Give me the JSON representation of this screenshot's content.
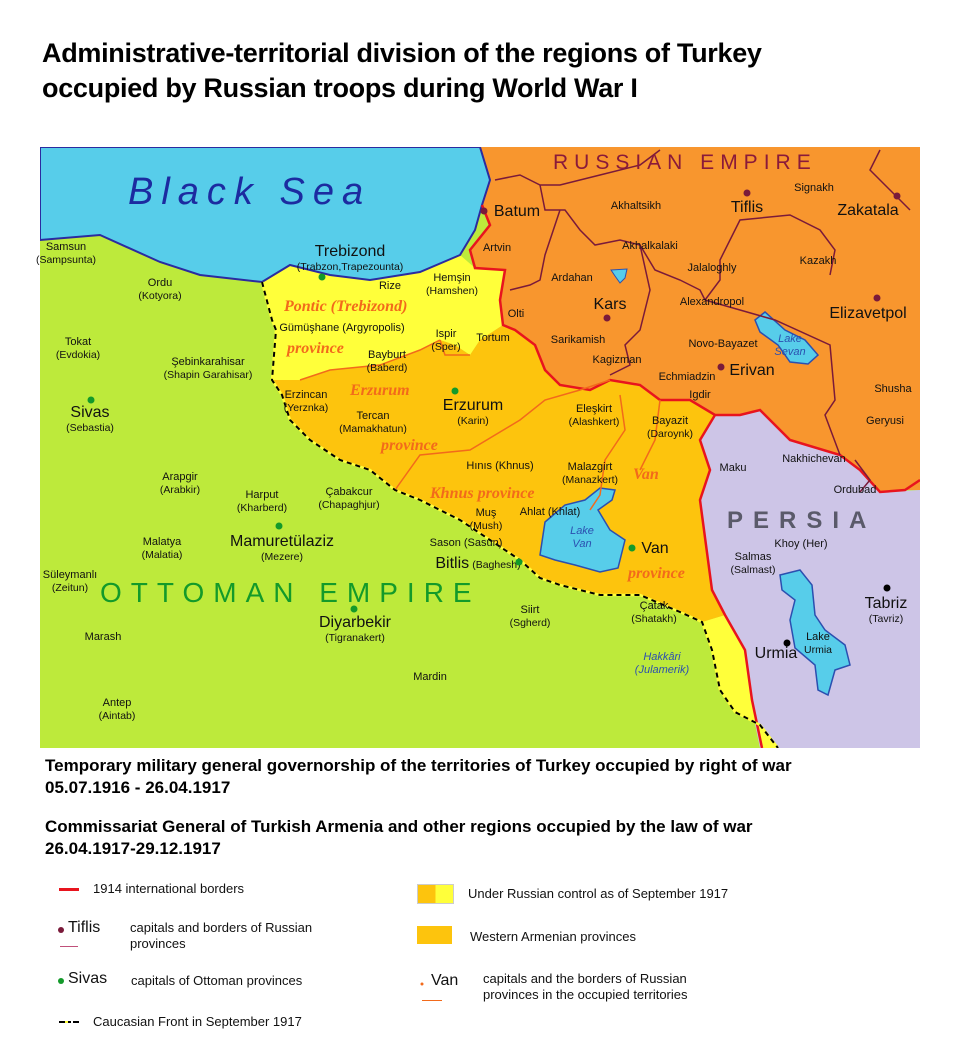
{
  "title": [
    "Administrative-territorial division of the regions of Turkey",
    "occupied by Russian troops during World War I"
  ],
  "colors": {
    "ottoman": "#bdea3b",
    "russia": "#f8962e",
    "persia": "#cdc5e7",
    "sea": "#57cdea",
    "pontic": "#ffff3a",
    "armenian": "#fdc40d",
    "border_red": "#e8141e",
    "russian_prov_border": "#7a1a3a",
    "occupied_prov_border": "#f26a1b",
    "front": "#000000"
  },
  "regions": {
    "sea": "Black Sea",
    "russia": "RUSSIAN EMPIRE",
    "ottoman": "OTTOMAN EMPIRE",
    "persia": "PERSIA"
  },
  "provinces": [
    "Pontic (Trebizond)",
    "province",
    "Erzurum",
    "province",
    "Khnus province",
    "Van",
    "province"
  ],
  "places": [
    {
      "name": "Samsun",
      "sub": "(Sampsunta)"
    },
    {
      "name": "Ordu",
      "sub": "(Kotyora)"
    },
    {
      "name": "Tokat",
      "sub": "(Evdokia)"
    },
    {
      "name": "Şebinkarahisar",
      "sub": "(Shapin Garahisar)"
    },
    {
      "name": "Sivas",
      "sub": "(Sebastia)"
    },
    {
      "name": "Trebizond",
      "sub": "(Trabzon,Trapezounta)"
    },
    {
      "name": "Rize",
      "sub": ""
    },
    {
      "name": "Hemşin",
      "sub": "(Hamshen)"
    },
    {
      "name": "Gümüşhane (Argyropolis)",
      "sub": ""
    },
    {
      "name": "Bayburt",
      "sub": "(Baberd)"
    },
    {
      "name": "Ispir",
      "sub": "(Sper)"
    },
    {
      "name": "Tortum",
      "sub": ""
    },
    {
      "name": "Erzincan",
      "sub": "(Yerznka)"
    },
    {
      "name": "Tercan",
      "sub": "(Mamakhatun)"
    },
    {
      "name": "Erzurum",
      "sub": "(Karin)"
    },
    {
      "name": "Olti",
      "sub": ""
    },
    {
      "name": "Artvin",
      "sub": ""
    },
    {
      "name": "Batum",
      "sub": ""
    },
    {
      "name": "Akhaltsikh",
      "sub": ""
    },
    {
      "name": "Tiflis",
      "sub": ""
    },
    {
      "name": "Signakh",
      "sub": ""
    },
    {
      "name": "Zakatala",
      "sub": ""
    },
    {
      "name": "Akhalkalaki",
      "sub": ""
    },
    {
      "name": "Ardahan",
      "sub": ""
    },
    {
      "name": "Jalaloghly",
      "sub": ""
    },
    {
      "name": "Kazakh",
      "sub": ""
    },
    {
      "name": "Kars",
      "sub": ""
    },
    {
      "name": "Alexandropol",
      "sub": ""
    },
    {
      "name": "Elizavetpol",
      "sub": ""
    },
    {
      "name": "Sarikamish",
      "sub": ""
    },
    {
      "name": "Novo-Bayazet",
      "sub": ""
    },
    {
      "name": "Lake",
      "sub": "Sevan"
    },
    {
      "name": "Kagizman",
      "sub": ""
    },
    {
      "name": "Echmiadzin",
      "sub": ""
    },
    {
      "name": "Erivan",
      "sub": ""
    },
    {
      "name": "Shusha",
      "sub": ""
    },
    {
      "name": "Igdir",
      "sub": ""
    },
    {
      "name": "Eleşkirt",
      "sub": "(Alashkert)"
    },
    {
      "name": "Bayazit",
      "sub": "(Daroynk)"
    },
    {
      "name": "Geryusi",
      "sub": ""
    },
    {
      "name": "Hınıs (Khnus)",
      "sub": ""
    },
    {
      "name": "Malazgirt",
      "sub": "(Manazkert)"
    },
    {
      "name": "Maku",
      "sub": ""
    },
    {
      "name": "Nakhichevan",
      "sub": ""
    },
    {
      "name": "Ordubad",
      "sub": ""
    },
    {
      "name": "Arapgir",
      "sub": "(Arabkir)"
    },
    {
      "name": "Harput",
      "sub": "(Kharberd)"
    },
    {
      "name": "Çabakcur",
      "sub": "(Chapaghjur)"
    },
    {
      "name": "Muş",
      "sub": "(Mush)"
    },
    {
      "name": "Ahlat (Khlat)",
      "sub": ""
    },
    {
      "name": "Lake",
      "sub": "Van"
    },
    {
      "name": "Van",
      "sub": ""
    },
    {
      "name": "Sason (Sasun)",
      "sub": ""
    },
    {
      "name": "Bitlis",
      "sub": "(Baghesh)"
    },
    {
      "name": "Khoy (Her)",
      "sub": ""
    },
    {
      "name": "Salmas",
      "sub": "(Salmast)"
    },
    {
      "name": "Malatya",
      "sub": "(Malatia)"
    },
    {
      "name": "Mamuretülaziz",
      "sub": "(Mezere)"
    },
    {
      "name": "Süleymanlı",
      "sub": "(Zeitun)"
    },
    {
      "name": "Siirt",
      "sub": "(Sgherd)"
    },
    {
      "name": "Çatak",
      "sub": "(Shatakh)"
    },
    {
      "name": "Diyarbekir",
      "sub": "(Tigranakert)"
    },
    {
      "name": "Tabriz",
      "sub": "(Tavriz)"
    },
    {
      "name": "Marash",
      "sub": ""
    },
    {
      "name": "Urmia",
      "sub": ""
    },
    {
      "name": "Lake",
      "sub": "Urmia"
    },
    {
      "name": "Hakkâri",
      "sub": "(Julamerik)"
    },
    {
      "name": "Mardin",
      "sub": ""
    },
    {
      "name": "Antep",
      "sub": "(Aintab)"
    }
  ],
  "subtitles": [
    {
      "line1": "Temporary military general governorship of the territories of Turkey occupied by right of war",
      "line2": "05.07.1916 - 26.04.1917"
    },
    {
      "line1": "Commissariat General of Turkish Armenia and other regions occupied by the law of war",
      "line2": "26.04.1917-29.12.1917"
    }
  ],
  "legend": {
    "borders": "1914 international borders",
    "tiflis_sample": "Tiflis",
    "tiflis_text": "capitals and borders of Russian provinces",
    "sivas_sample": "Sivas",
    "sivas_text": "capitals of Ottoman provinces",
    "front": "Caucasian Front in September 1917",
    "control": "Under Russian control  as of September 1917",
    "armenian": "Western Armenian provinces",
    "van_sample": "Van",
    "van_text": "capitals and the borders of Russian provinces in the occupied territories"
  }
}
